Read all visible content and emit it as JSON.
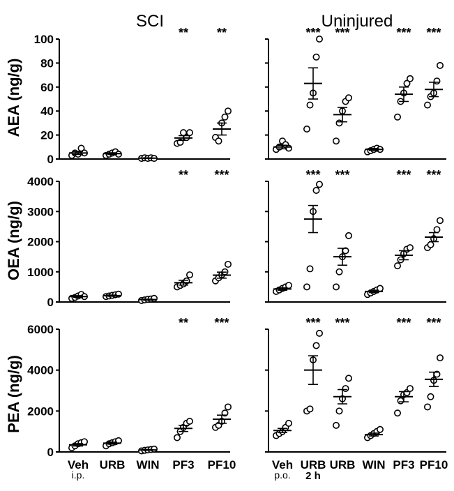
{
  "figure": {
    "column_titles": [
      "SCI",
      "Uninjured"
    ],
    "row_ylabels": [
      "AEA (ng/g)",
      "OEA (ng/g)",
      "PEA (ng/g)"
    ],
    "sci_route_label": "i.p.",
    "uninj_route_label": "p.o.",
    "uninj_time_label": "2 h"
  },
  "chart_data": [
    {
      "type": "scatter",
      "panel": "AEA SCI",
      "title": "SCI",
      "ylabel": "AEA (ng/g)",
      "categories": [
        "Veh",
        "URB",
        "WIN",
        "PF3",
        "PF10"
      ],
      "yticks": [
        "0",
        "20",
        "40",
        "60",
        "80",
        "100"
      ],
      "ylim": [
        0,
        100
      ],
      "show_yticks": true,
      "points": [
        [
          3,
          5,
          4,
          9,
          5
        ],
        [
          3,
          4,
          5,
          6,
          4
        ],
        [
          0.5,
          1,
          0.5,
          1,
          0.5
        ],
        [
          13,
          14,
          22,
          18,
          22
        ],
        [
          18,
          15,
          30,
          35,
          40
        ]
      ],
      "means": [
        5,
        4.5,
        0.7,
        17.5,
        25
      ],
      "sem": [
        1.2,
        0.7,
        0.2,
        2,
        5
      ],
      "significance": [
        "",
        "",
        "",
        "**",
        "**"
      ]
    },
    {
      "type": "scatter",
      "panel": "AEA Uninjured",
      "title": "Uninjured",
      "ylabel": "",
      "categories": [
        "Veh",
        "URB",
        "URB",
        "WIN",
        "PF3",
        "PF10"
      ],
      "yticks": [
        "0",
        "20",
        "40",
        "60",
        "80",
        "100"
      ],
      "ylim": [
        0,
        100
      ],
      "show_yticks": false,
      "points": [
        [
          8,
          10,
          15,
          12,
          9
        ],
        [
          25,
          45,
          55,
          85,
          100
        ],
        [
          15,
          30,
          40,
          48,
          51
        ],
        [
          6,
          7,
          8,
          9,
          8
        ],
        [
          35,
          48,
          55,
          63,
          67
        ],
        [
          45,
          52,
          55,
          65,
          78
        ]
      ],
      "means": [
        10,
        63,
        37,
        8,
        54,
        58
      ],
      "sem": [
        1.5,
        13,
        6,
        0.8,
        6,
        6
      ],
      "significance": [
        "",
        "***",
        "***",
        "",
        "***",
        "***"
      ]
    },
    {
      "type": "scatter",
      "panel": "OEA SCI",
      "title": "",
      "ylabel": "OEA (ng/g)",
      "categories": [
        "Veh",
        "URB",
        "WIN",
        "PF3",
        "PF10"
      ],
      "yticks": [
        "0",
        "1000",
        "2000",
        "3000",
        "4000"
      ],
      "ylim": [
        0,
        4000
      ],
      "show_yticks": true,
      "points": [
        [
          120,
          150,
          200,
          250,
          180
        ],
        [
          180,
          200,
          220,
          240,
          260
        ],
        [
          50,
          70,
          90,
          100,
          120
        ],
        [
          500,
          550,
          600,
          700,
          900
        ],
        [
          700,
          800,
          900,
          1000,
          1250
        ]
      ],
      "means": [
        180,
        210,
        80,
        640,
        890
      ],
      "sem": [
        30,
        20,
        15,
        80,
        100
      ],
      "significance": [
        "",
        "",
        "",
        "**",
        "***"
      ]
    },
    {
      "type": "scatter",
      "panel": "OEA Uninjured",
      "title": "",
      "ylabel": "",
      "categories": [
        "Veh",
        "URB",
        "URB",
        "WIN",
        "PF3",
        "PF10"
      ],
      "yticks": [
        "0",
        "1000",
        "2000",
        "3000",
        "4000"
      ],
      "ylim": [
        0,
        4000
      ],
      "show_yticks": false,
      "points": [
        [
          350,
          400,
          450,
          500,
          550
        ],
        [
          500,
          1100,
          3000,
          3700,
          3900
        ],
        [
          500,
          1000,
          1500,
          1700,
          2200
        ],
        [
          250,
          300,
          350,
          400,
          450
        ],
        [
          1200,
          1400,
          1600,
          1750,
          1800
        ],
        [
          1800,
          1900,
          2100,
          2400,
          2700
        ]
      ],
      "means": [
        430,
        2750,
        1500,
        350,
        1550,
        2150
      ],
      "sem": [
        40,
        450,
        280,
        40,
        150,
        150
      ],
      "significance": [
        "",
        "***",
        "***",
        "",
        "***",
        "***"
      ]
    },
    {
      "type": "scatter",
      "panel": "PEA SCI",
      "title": "",
      "ylabel": "PEA (ng/g)",
      "categories": [
        "Veh",
        "URB",
        "WIN",
        "PF3",
        "PF10"
      ],
      "yticks": [
        "0",
        "2000",
        "4000",
        "6000"
      ],
      "ylim": [
        0,
        6000
      ],
      "show_yticks": true,
      "points": [
        [
          200,
          300,
          400,
          450,
          500
        ],
        [
          300,
          400,
          450,
          500,
          550
        ],
        [
          50,
          80,
          100,
          120,
          140
        ],
        [
          700,
          1000,
          1200,
          1400,
          1500
        ],
        [
          1200,
          1300,
          1500,
          1900,
          2200
        ]
      ],
      "means": [
        350,
        430,
        100,
        1150,
        1600
      ],
      "sem": [
        60,
        50,
        20,
        150,
        200
      ],
      "significance": [
        "",
        "",
        "",
        "**",
        "***"
      ]
    },
    {
      "type": "scatter",
      "panel": "PEA Uninjured",
      "title": "",
      "ylabel": "",
      "categories": [
        "Veh",
        "URB",
        "URB",
        "WIN",
        "PF3",
        "PF10"
      ],
      "yticks": [
        "0",
        "2000",
        "4000",
        "6000"
      ],
      "ylim": [
        0,
        6000
      ],
      "show_yticks": false,
      "points": [
        [
          800,
          900,
          1000,
          1200,
          1400
        ],
        [
          2000,
          2100,
          4500,
          5200,
          5800
        ],
        [
          1300,
          2000,
          2600,
          3100,
          3600
        ],
        [
          700,
          800,
          900,
          1000,
          1100
        ],
        [
          1900,
          2500,
          2800,
          2900,
          3100
        ],
        [
          2200,
          2700,
          3500,
          3800,
          4600
        ]
      ],
      "means": [
        1050,
        4000,
        2700,
        850,
        2700,
        3550
      ],
      "sem": [
        100,
        700,
        350,
        70,
        250,
        350
      ],
      "significance": [
        "",
        "***",
        "***",
        "",
        "***",
        "***"
      ]
    }
  ]
}
